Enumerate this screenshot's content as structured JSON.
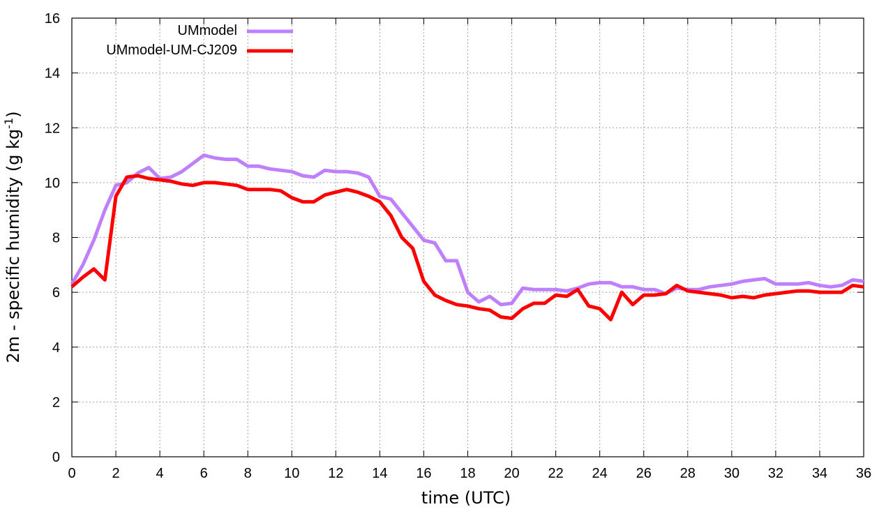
{
  "chart_data": {
    "type": "line",
    "title": "",
    "xlabel": "time (UTC)",
    "ylabel_main": "2m - specific humidity (g kg",
    "ylabel_sup": "-1",
    "ylabel_close": ")",
    "xlim": [
      0,
      36
    ],
    "ylim": [
      0,
      16
    ],
    "xticks": [
      0,
      2,
      4,
      6,
      8,
      10,
      12,
      14,
      16,
      18,
      20,
      22,
      24,
      26,
      28,
      30,
      32,
      34,
      36
    ],
    "yticks": [
      0,
      2,
      4,
      6,
      8,
      10,
      12,
      14,
      16
    ],
    "grid": true,
    "legend_position": "top-left",
    "series": [
      {
        "name": "UMmodel",
        "color": "#bf80ff",
        "x": [
          0,
          0.5,
          1,
          1.5,
          2,
          2.5,
          3,
          3.5,
          4,
          4.5,
          5,
          5.5,
          6,
          6.5,
          7,
          7.5,
          8,
          8.5,
          9,
          9.5,
          10,
          10.5,
          11,
          11.5,
          12,
          12.5,
          13,
          13.5,
          14,
          14.5,
          15,
          15.5,
          16,
          16.5,
          17,
          17.5,
          18,
          18.5,
          19,
          19.5,
          20,
          20.5,
          21,
          21.5,
          22,
          22.5,
          23,
          23.5,
          24,
          24.5,
          25,
          25.5,
          26,
          26.5,
          27,
          27.5,
          28,
          28.5,
          29,
          29.5,
          30,
          30.5,
          31,
          31.5,
          32,
          32.5,
          33,
          33.5,
          34,
          34.5,
          35,
          35.5,
          36
        ],
        "values": [
          6.3,
          7.0,
          7.9,
          9.0,
          9.9,
          10.0,
          10.35,
          10.55,
          10.15,
          10.2,
          10.4,
          10.7,
          11.0,
          10.9,
          10.85,
          10.85,
          10.6,
          10.6,
          10.5,
          10.45,
          10.4,
          10.25,
          10.2,
          10.45,
          10.4,
          10.4,
          10.35,
          10.2,
          9.5,
          9.4,
          8.9,
          8.4,
          7.9,
          7.8,
          7.15,
          7.15,
          6.0,
          5.65,
          5.85,
          5.55,
          5.6,
          6.15,
          6.1,
          6.1,
          6.1,
          6.05,
          6.15,
          6.3,
          6.35,
          6.35,
          6.2,
          6.2,
          6.1,
          6.1,
          5.95,
          6.15,
          6.1,
          6.1,
          6.2,
          6.25,
          6.3,
          6.4,
          6.45,
          6.5,
          6.3,
          6.3,
          6.3,
          6.35,
          6.25,
          6.2,
          6.25,
          6.45,
          6.4
        ]
      },
      {
        "name": "UMmodel-UM-CJ209",
        "color": "#ff0000",
        "x": [
          0,
          0.5,
          1,
          1.5,
          2,
          2.5,
          3,
          3.5,
          4,
          4.5,
          5,
          5.5,
          6,
          6.5,
          7,
          7.5,
          8,
          8.5,
          9,
          9.5,
          10,
          10.5,
          11,
          11.5,
          12,
          12.5,
          13,
          13.5,
          14,
          14.5,
          15,
          15.5,
          16,
          16.5,
          17,
          17.5,
          18,
          18.5,
          19,
          19.5,
          20,
          20.5,
          21,
          21.5,
          22,
          22.5,
          23,
          23.5,
          24,
          24.5,
          25,
          25.5,
          26,
          26.5,
          27,
          27.5,
          28,
          28.5,
          29,
          29.5,
          30,
          30.5,
          31,
          31.5,
          32,
          32.5,
          33,
          33.5,
          34,
          34.5,
          35,
          35.5,
          36
        ],
        "values": [
          6.2,
          6.55,
          6.85,
          6.45,
          9.5,
          10.2,
          10.25,
          10.15,
          10.1,
          10.05,
          9.95,
          9.9,
          10.0,
          10.0,
          9.95,
          9.9,
          9.75,
          9.75,
          9.75,
          9.7,
          9.45,
          9.3,
          9.3,
          9.55,
          9.65,
          9.75,
          9.65,
          9.5,
          9.3,
          8.8,
          8.0,
          7.6,
          6.4,
          5.9,
          5.7,
          5.55,
          5.5,
          5.4,
          5.35,
          5.1,
          5.05,
          5.4,
          5.6,
          5.6,
          5.9,
          5.85,
          6.1,
          5.5,
          5.4,
          5.0,
          6.0,
          5.55,
          5.9,
          5.9,
          5.95,
          6.25,
          6.05,
          6.0,
          5.95,
          5.9,
          5.8,
          5.85,
          5.8,
          5.9,
          5.95,
          6.0,
          6.05,
          6.05,
          6.0,
          6.0,
          6.0,
          6.25,
          6.2
        ]
      }
    ]
  }
}
